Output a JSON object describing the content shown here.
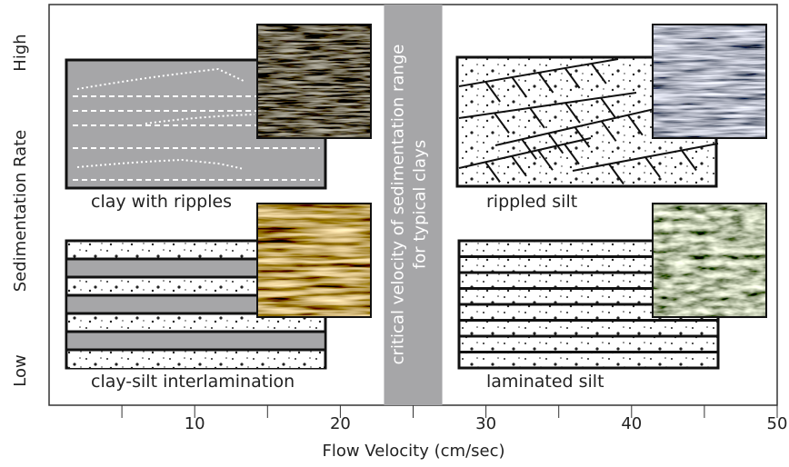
{
  "x_axis": {
    "label": "Flow Velocity (cm/sec)",
    "xlim": [
      0,
      50
    ],
    "ticks": [
      10,
      20,
      30,
      40,
      50
    ],
    "minor_ticks": [
      5,
      15,
      25,
      35,
      45
    ]
  },
  "y_axis": {
    "label": "Sedimentation Rate",
    "high": "High",
    "low": "Low"
  },
  "band": {
    "range": [
      23,
      27
    ],
    "lines": [
      "critical velocity of sedimentation range",
      "for typical clays"
    ]
  },
  "panels": [
    {
      "label": "clay with ripples"
    },
    {
      "label": "rippled silt"
    },
    {
      "label": "clay-silt interlamination"
    },
    {
      "label": "laminated silt"
    }
  ]
}
